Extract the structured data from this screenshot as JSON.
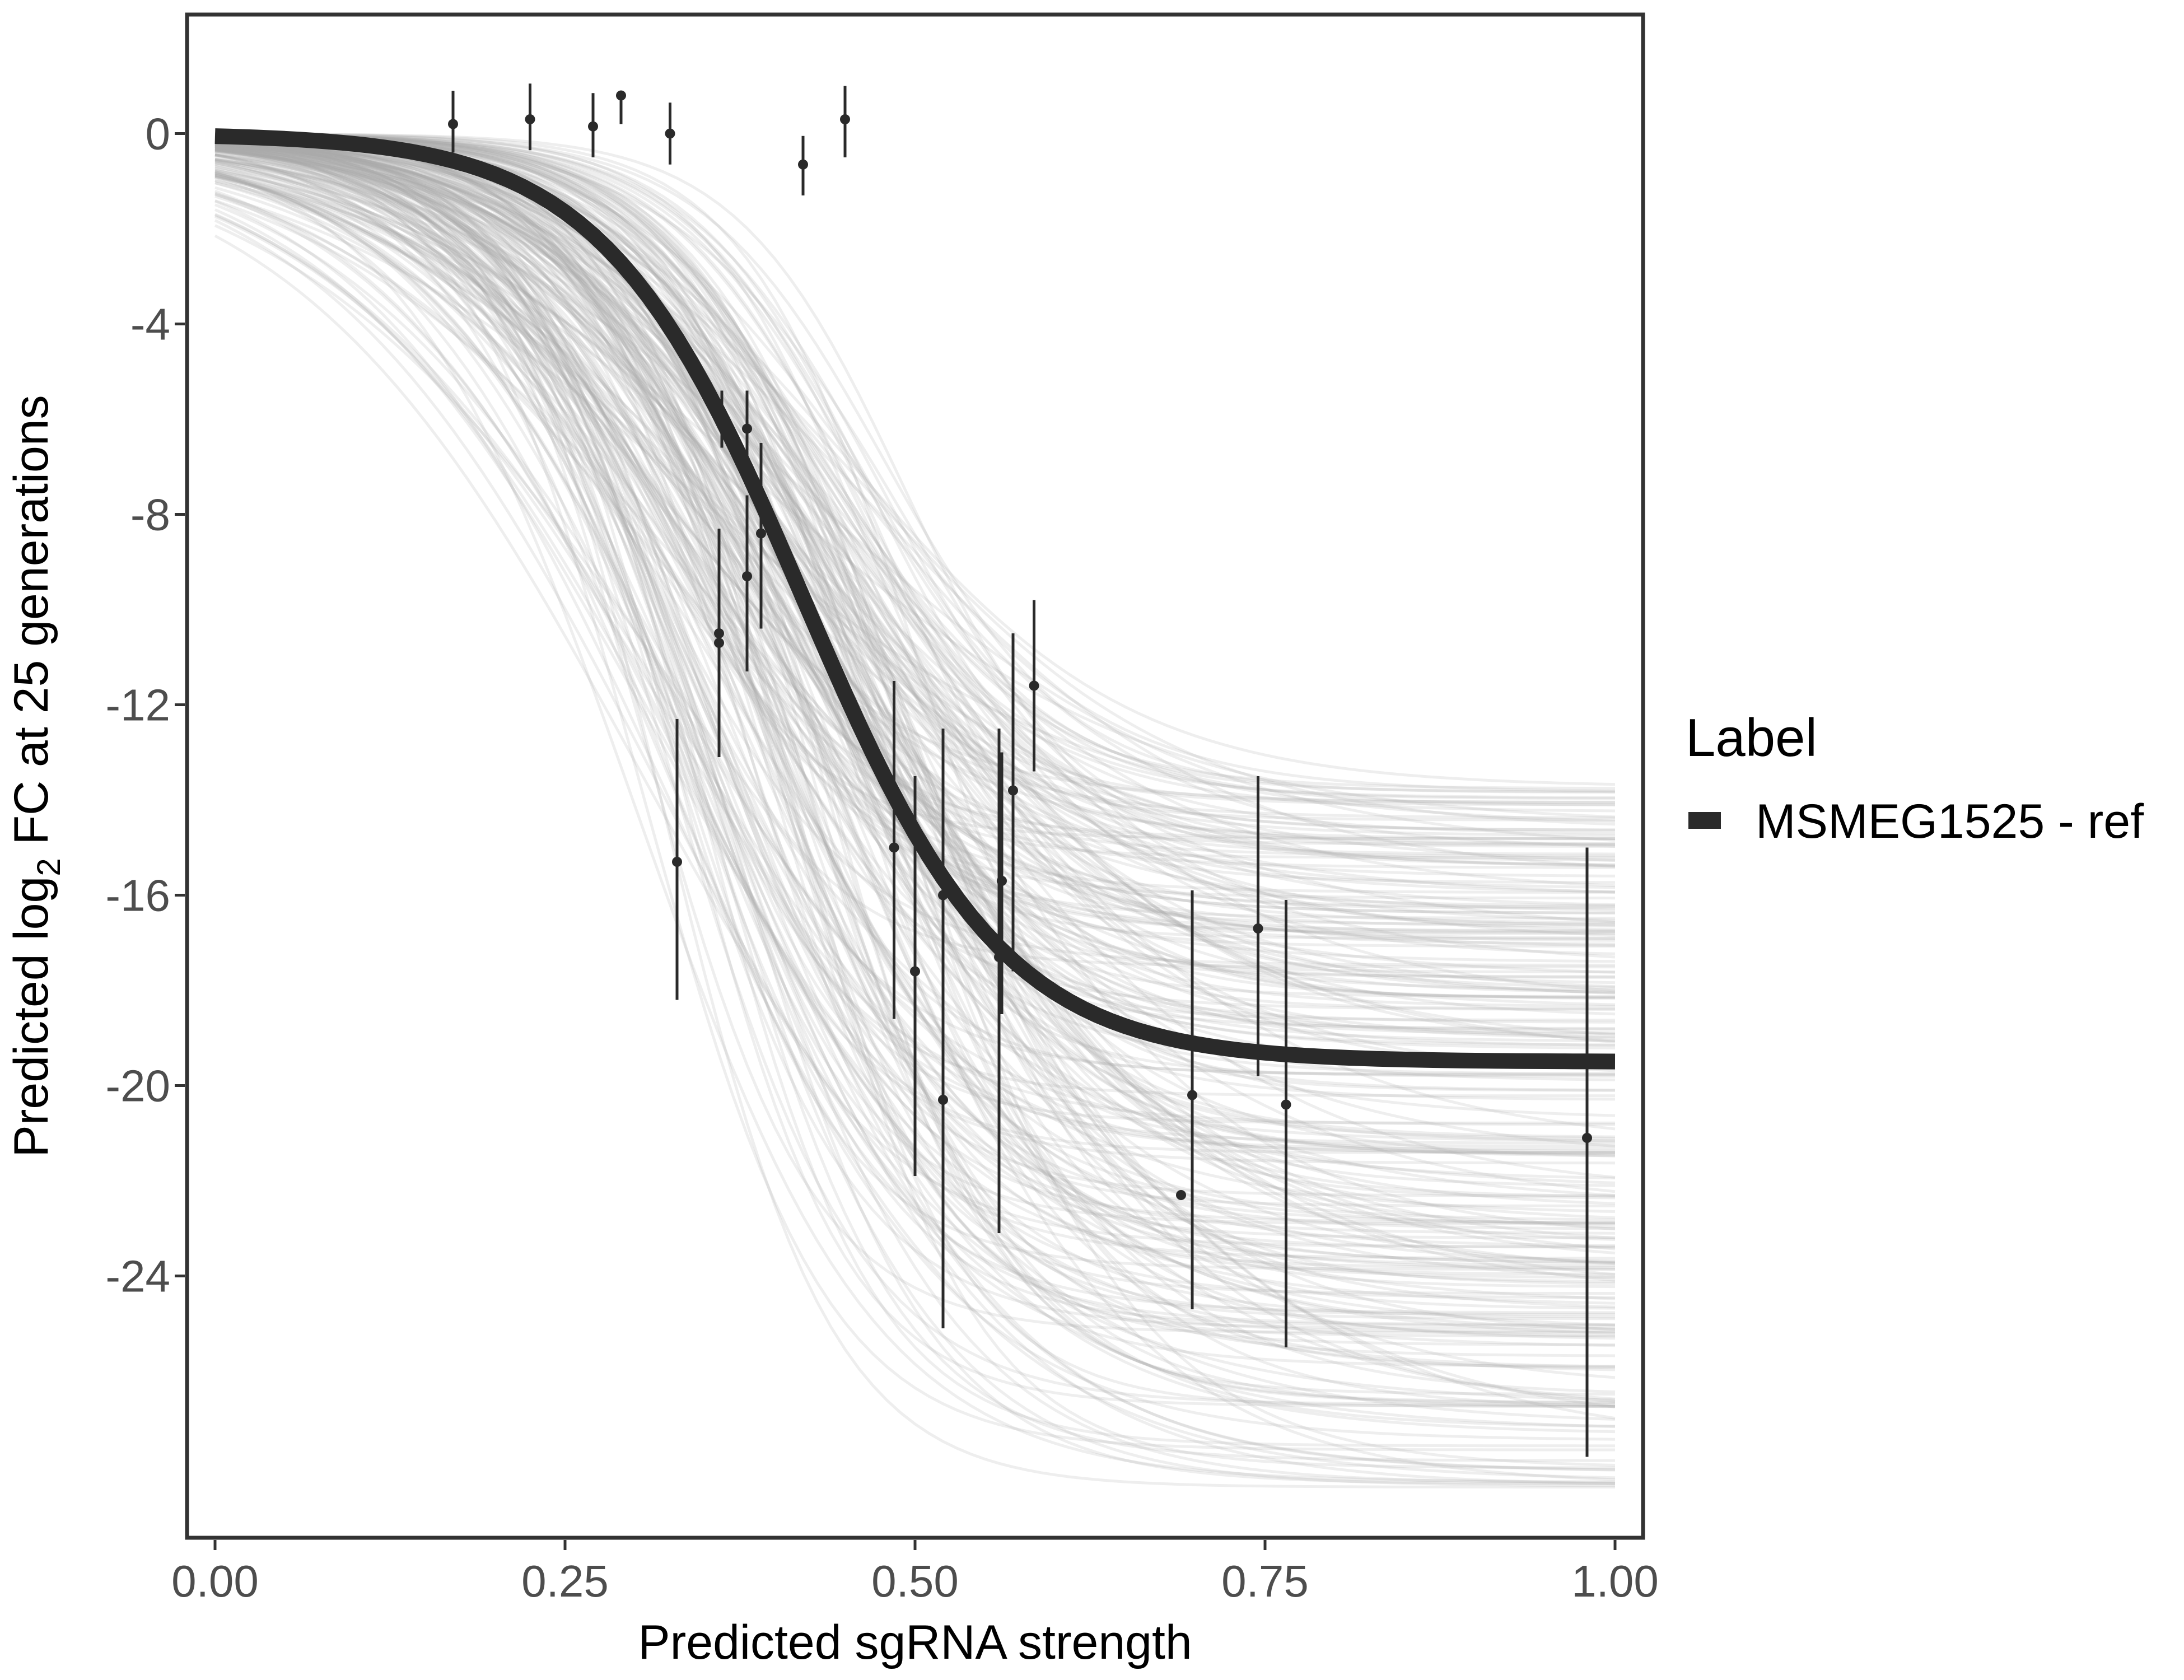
{
  "chart_data": {
    "type": "line",
    "xlabel": "Predicted sgRNA strength",
    "ylabel_prefix": "Predicted  log",
    "ylabel_sub": "2",
    "ylabel_suffix": " FC at 25 generations",
    "xlim": [
      -0.02,
      1.02
    ],
    "ylim": [
      -29.5,
      2.5
    ],
    "x_ticks": [
      0,
      0.25,
      0.5,
      0.75,
      1
    ],
    "x_tick_labels": [
      "0.00",
      "0.25",
      "0.50",
      "0.75",
      "1.00"
    ],
    "y_ticks": [
      0,
      -4,
      -8,
      -12,
      -16,
      -20,
      -24
    ],
    "y_tick_labels": [
      "0",
      "-4",
      "-8",
      "-12",
      "-16",
      "-20",
      "-24"
    ],
    "legend": {
      "title": "Label",
      "entries": [
        {
          "name": "MSMEG1525 - ref",
          "color": "#2a2a2a"
        }
      ],
      "position": "right"
    },
    "fit": {
      "name": "MSMEG1525 - ref",
      "model": "logistic",
      "upper": 0,
      "lower": -19.5,
      "midpoint": 0.42,
      "slope": 14,
      "color": "#2a2a2a"
    },
    "posterior_draws": {
      "count": 260,
      "color": "#aaaaaa",
      "lower_range": [
        -28.5,
        -13.7
      ],
      "midpoint_range": [
        0.3,
        0.5
      ],
      "slope_range": [
        7,
        17
      ]
    },
    "points": [
      {
        "x": 0.17,
        "y": 0.2,
        "lo": -0.4,
        "hi": 0.9
      },
      {
        "x": 0.225,
        "y": 0.3,
        "lo": -0.35,
        "hi": 1.05
      },
      {
        "x": 0.27,
        "y": 0.15,
        "lo": -0.5,
        "hi": 0.85
      },
      {
        "x": 0.29,
        "y": 0.8,
        "lo": 0.2,
        "hi": 0.8
      },
      {
        "x": 0.325,
        "y": 0.0,
        "lo": -0.65,
        "hi": 0.65
      },
      {
        "x": 0.33,
        "y": -15.3,
        "lo": -18.2,
        "hi": -12.3
      },
      {
        "x": 0.36,
        "y": -10.5,
        "lo": -13.1,
        "hi": -8.3
      },
      {
        "x": 0.36,
        "y": -10.7,
        "lo": -13.0,
        "hi": -8.6
      },
      {
        "x": 0.362,
        "y": -6.1,
        "lo": -6.6,
        "hi": -5.4
      },
      {
        "x": 0.38,
        "y": -6.2,
        "lo": -7.4,
        "hi": -5.4
      },
      {
        "x": 0.38,
        "y": -9.3,
        "lo": -11.3,
        "hi": -7.6
      },
      {
        "x": 0.39,
        "y": -8.4,
        "lo": -10.4,
        "hi": -6.5
      },
      {
        "x": 0.42,
        "y": -0.65,
        "lo": -1.3,
        "hi": -0.05
      },
      {
        "x": 0.45,
        "y": 0.3,
        "lo": -0.5,
        "hi": 1.0
      },
      {
        "x": 0.485,
        "y": -15.0,
        "lo": -18.6,
        "hi": -11.5
      },
      {
        "x": 0.5,
        "y": -17.6,
        "lo": -21.9,
        "hi": -13.5
      },
      {
        "x": 0.52,
        "y": -16.0,
        "lo": -18.6,
        "hi": -12.5
      },
      {
        "x": 0.52,
        "y": -20.3,
        "lo": -25.1,
        "hi": -16.4
      },
      {
        "x": 0.56,
        "y": -17.3,
        "lo": -23.1,
        "hi": -12.5
      },
      {
        "x": 0.562,
        "y": -15.7,
        "lo": -18.5,
        "hi": -13.0
      },
      {
        "x": 0.57,
        "y": -13.8,
        "lo": -17.6,
        "hi": -10.5
      },
      {
        "x": 0.585,
        "y": -11.6,
        "lo": -13.4,
        "hi": -9.8
      },
      {
        "x": 0.69,
        "y": -22.3,
        "lo": -22.3,
        "hi": -22.3
      },
      {
        "x": 0.698,
        "y": -20.2,
        "lo": -24.7,
        "hi": -15.9
      },
      {
        "x": 0.745,
        "y": -16.7,
        "lo": -19.8,
        "hi": -13.5
      },
      {
        "x": 0.765,
        "y": -20.4,
        "lo": -25.5,
        "hi": -16.1
      },
      {
        "x": 0.98,
        "y": -21.1,
        "lo": -27.8,
        "hi": -15.0
      }
    ]
  }
}
